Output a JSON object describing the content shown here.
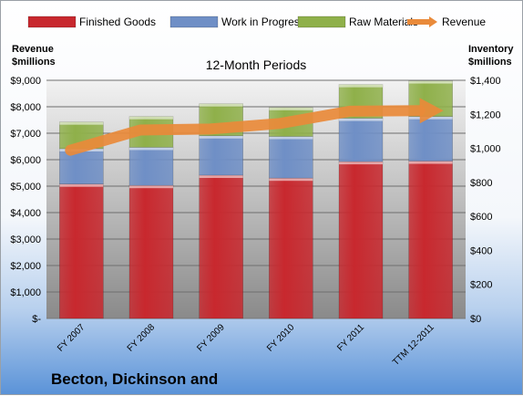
{
  "chart_data": {
    "type": "bar",
    "subtitle": "12-Month Periods",
    "left_axis_title": [
      "Revenue",
      "$millions"
    ],
    "right_axis_title": [
      "Inventory",
      "$millions"
    ],
    "categories": [
      "FY 2007",
      "FY 2008",
      "FY 2009",
      "FY 2010",
      "FY 2011",
      "TTM 12-2011"
    ],
    "series": [
      {
        "name": "Finished Goods",
        "color": "#c8282e",
        "axis": "right",
        "values": [
          790,
          782,
          842,
          825,
          922,
          925
        ]
      },
      {
        "name": "Work in Progress",
        "color": "#6f8fc6",
        "axis": "right",
        "values": [
          208,
          224,
          232,
          245,
          255,
          262
        ]
      },
      {
        "name": "Raw Materials",
        "color": "#8fb04a",
        "axis": "right",
        "values": [
          157,
          181,
          188,
          170,
          198,
          210
        ]
      }
    ],
    "line_series": {
      "name": "Revenue",
      "color": "#e98a3a",
      "axis": "left",
      "values": [
        6360,
        7120,
        7160,
        7370,
        7830,
        7850
      ]
    },
    "y_left": {
      "min": 0,
      "max": 9000,
      "step": 1000,
      "labels": [
        "$-",
        "$1,000",
        "$2,000",
        "$3,000",
        "$4,000",
        "$5,000",
        "$6,000",
        "$7,000",
        "$8,000",
        "$9,000"
      ]
    },
    "y_right": {
      "min": 0,
      "max": 1400,
      "step": 200,
      "labels": [
        "$0",
        "$200",
        "$400",
        "$600",
        "$800",
        "$1,000",
        "$1,200",
        "$1,400"
      ]
    },
    "legend_position": "top",
    "company_title": "Becton, Dickinson and"
  }
}
